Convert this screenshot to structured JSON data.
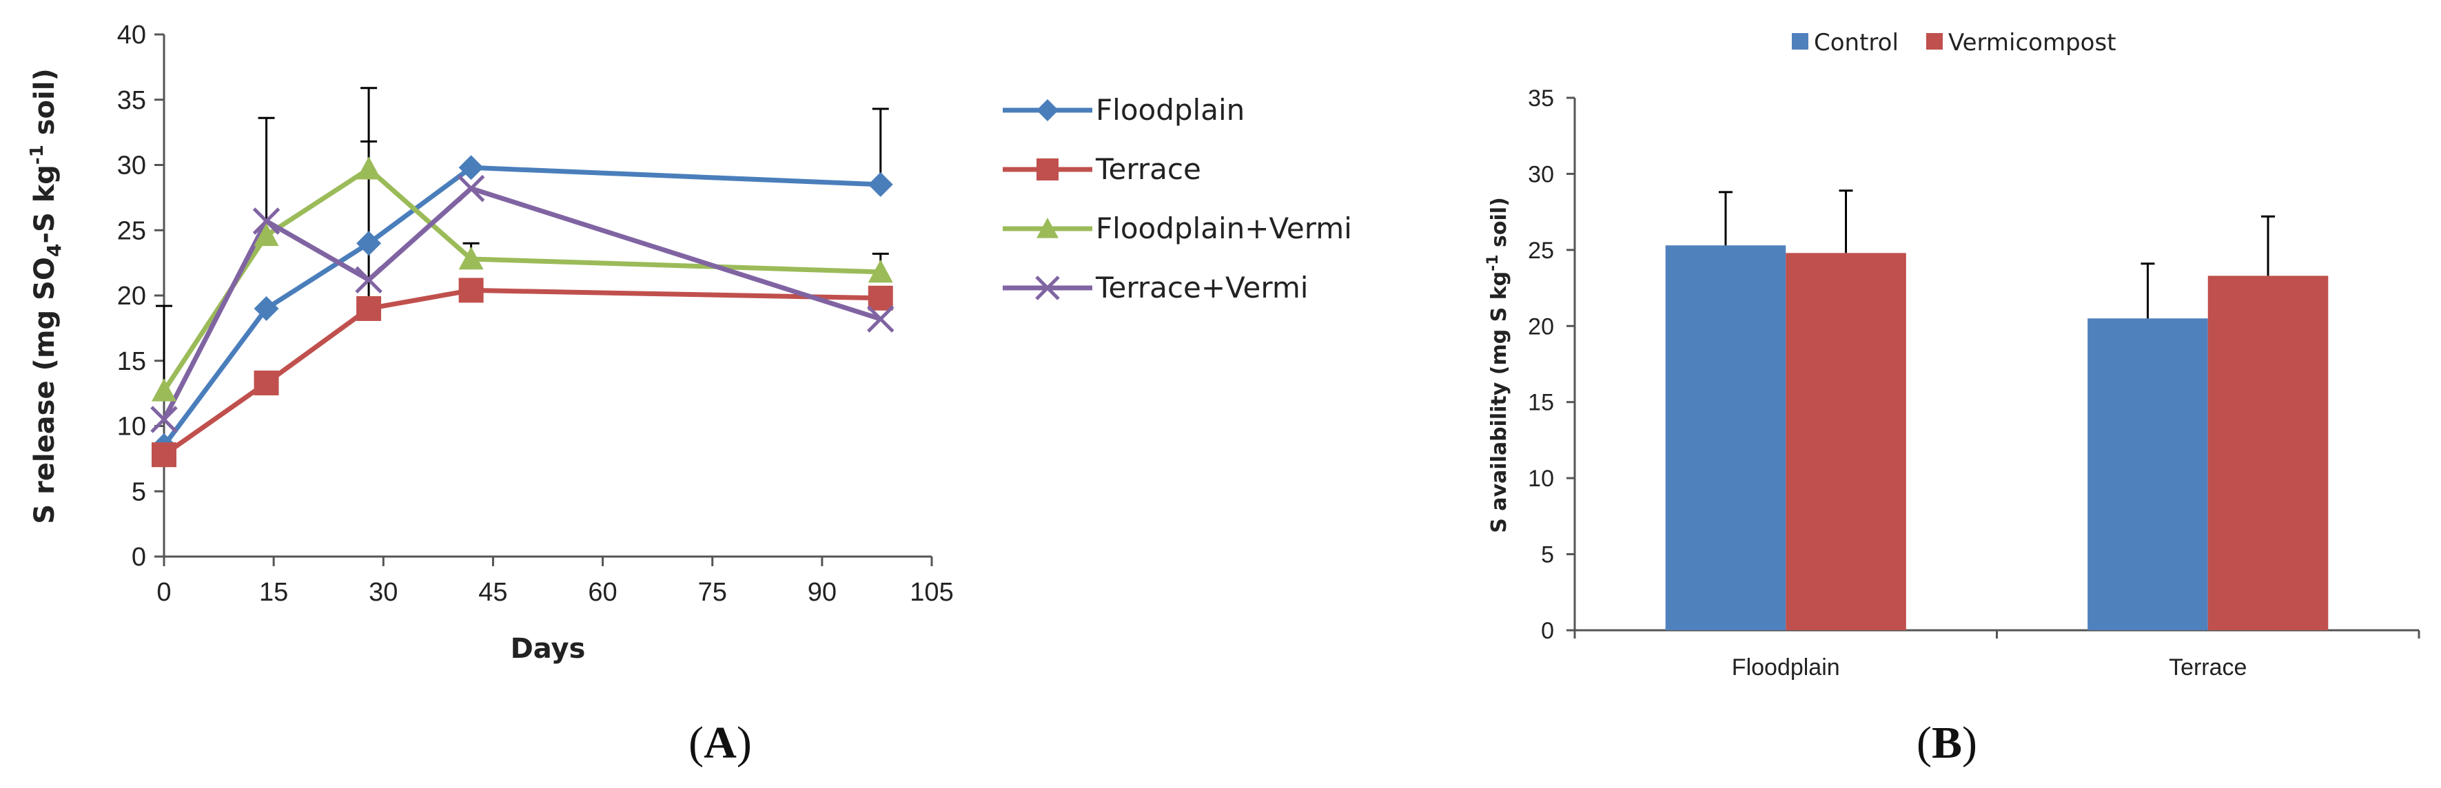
{
  "chart_data": [
    {
      "type": "line",
      "panel": "A",
      "panel_label_open": "(",
      "panel_label_letter": "A",
      "panel_label_close": ")",
      "xlabel": "Days",
      "ylabel_parts": [
        "S release (mg SO",
        "4",
        "-S kg",
        "-1",
        " soil)"
      ],
      "ylim": [
        0,
        40
      ],
      "xlim": [
        0,
        105
      ],
      "yticks": [
        "0",
        "5",
        "10",
        "15",
        "20",
        "25",
        "30",
        "35",
        "40"
      ],
      "xticks": [
        "0",
        "15",
        "30",
        "45",
        "60",
        "75",
        "90",
        "105"
      ],
      "series": [
        {
          "name": "Floodplain",
          "color": "#4a7ebb",
          "marker": "diamond",
          "x": [
            0,
            14,
            28,
            42,
            98
          ],
          "values": [
            8.5,
            19,
            24,
            29.8,
            28.5
          ],
          "err": [
            null,
            null,
            null,
            null,
            5.8
          ]
        },
        {
          "name": "Terrace",
          "color": "#c0504d",
          "marker": "square",
          "x": [
            0,
            14,
            28,
            42,
            98
          ],
          "values": [
            7.8,
            13.3,
            19,
            20.4,
            19.8
          ],
          "err": [
            null,
            null,
            12.8,
            null,
            null
          ]
        },
        {
          "name": "Floodplain+Vermi",
          "color": "#9bbb59",
          "marker": "triangle",
          "x": [
            0,
            14,
            28,
            42,
            98
          ],
          "values": [
            12.7,
            24.6,
            29.7,
            22.8,
            21.8
          ],
          "err": [
            6.5,
            9,
            6.2,
            1.2,
            1.4
          ]
        },
        {
          "name": "Terrace+Vermi",
          "color": "#8064a2",
          "marker": "x",
          "x": [
            0,
            14,
            28,
            42,
            98
          ],
          "values": [
            10.5,
            25.7,
            21.2,
            28.2,
            18.2
          ],
          "err": [
            null,
            null,
            null,
            null,
            null
          ]
        }
      ]
    },
    {
      "type": "bar",
      "panel": "B",
      "panel_label_open": "(",
      "panel_label_letter": "B",
      "panel_label_close": ")",
      "xlabel": "",
      "ylabel_parts": [
        "S availability (mg S kg",
        "-1",
        " soil)"
      ],
      "ylim": [
        0,
        35
      ],
      "yticks": [
        "0",
        "5",
        "10",
        "15",
        "20",
        "25",
        "30",
        "35"
      ],
      "categories": [
        "Floodplain",
        "Terrace"
      ],
      "series": [
        {
          "name": "Control",
          "color": "#4f81bd",
          "values": [
            25.3,
            20.5
          ],
          "err": [
            3.5,
            3.6
          ]
        },
        {
          "name": "Vermicompost",
          "color": "#c0504d",
          "values": [
            24.8,
            23.3
          ],
          "err": [
            4.1,
            3.9
          ]
        }
      ],
      "legend": "top"
    }
  ]
}
